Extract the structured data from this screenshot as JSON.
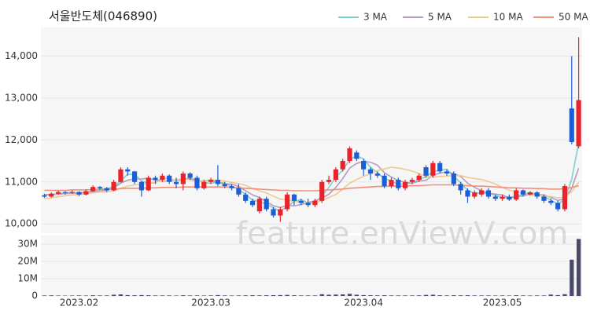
{
  "chart_data": {
    "type": "candlestick",
    "title": "서울반도체(046890)",
    "watermark": "feature.enViewV.com",
    "categories": [
      null,
      null,
      null,
      null,
      null,
      "2023.02",
      null,
      null,
      null,
      null,
      null,
      null,
      null,
      null,
      null,
      null,
      null,
      null,
      null,
      null,
      null,
      null,
      null,
      null,
      "2023.03",
      null,
      null,
      null,
      null,
      null,
      null,
      null,
      null,
      null,
      null,
      null,
      null,
      null,
      null,
      null,
      null,
      null,
      null,
      null,
      null,
      null,
      "2023.04",
      null,
      null,
      null,
      null,
      null,
      null,
      null,
      null,
      null,
      null,
      null,
      null,
      null,
      null,
      null,
      null,
      null,
      null,
      null,
      "2023.05",
      null,
      null,
      null,
      null,
      null,
      null,
      null,
      null,
      null,
      null,
      null
    ],
    "open": [
      10680,
      10650,
      10720,
      10760,
      10740,
      10760,
      10700,
      10780,
      10880,
      10850,
      10800,
      11000,
      11300,
      11250,
      11000,
      10800,
      11100,
      11050,
      11150,
      11000,
      10950,
      11200,
      11100,
      10850,
      11000,
      11050,
      10950,
      10900,
      10850,
      10700,
      10550,
      10300,
      10600,
      10350,
      10200,
      10350,
      10700,
      10550,
      10500,
      10450,
      10550,
      11000,
      11050,
      11300,
      11500,
      11700,
      11500,
      11300,
      11200,
      11150,
      10900,
      11050,
      10850,
      11000,
      11050,
      11350,
      11150,
      11450,
      11250,
      11200,
      10950,
      10800,
      10650,
      10700,
      10800,
      10650,
      10600,
      10650,
      10580,
      10800,
      10700,
      10750,
      10650,
      10550,
      10500,
      10350,
      12750,
      11850
    ],
    "high": [
      10720,
      10750,
      10790,
      10780,
      10800,
      10780,
      10820,
      10920,
      10900,
      10880,
      11050,
      11350,
      11350,
      11260,
      11020,
      11150,
      11150,
      11200,
      11180,
      11100,
      11250,
      11230,
      11150,
      11050,
      11100,
      11400,
      11000,
      10950,
      10950,
      10750,
      10600,
      10650,
      10650,
      10400,
      10400,
      10750,
      10720,
      10600,
      10600,
      10600,
      11050,
      11150,
      11350,
      11550,
      11850,
      11750,
      11550,
      11350,
      11250,
      11200,
      11100,
      11100,
      11050,
      11100,
      11200,
      11400,
      11500,
      11500,
      11300,
      11250,
      11000,
      10850,
      10800,
      10850,
      10850,
      10700,
      10700,
      10700,
      10850,
      10820,
      10780,
      10780,
      10700,
      10600,
      10550,
      10950,
      14000,
      14450
    ],
    "low": [
      10620,
      10630,
      10700,
      10700,
      10720,
      10660,
      10680,
      10760,
      10820,
      10760,
      10780,
      10980,
      11150,
      10950,
      10650,
      10780,
      10950,
      11000,
      10950,
      10850,
      10800,
      11050,
      10800,
      10820,
      10950,
      10900,
      10850,
      10800,
      10650,
      10500,
      10400,
      10250,
      10300,
      10150,
      10050,
      10300,
      10450,
      10450,
      10400,
      10400,
      10500,
      10950,
      11000,
      11250,
      11450,
      11500,
      11150,
      11050,
      11100,
      10850,
      10850,
      10800,
      10800,
      10950,
      11000,
      11100,
      11100,
      11200,
      11150,
      10900,
      10700,
      10500,
      10600,
      10650,
      10600,
      10550,
      10550,
      10550,
      10550,
      10650,
      10680,
      10600,
      10500,
      10450,
      10300,
      10300,
      11900,
      11800
    ],
    "close": [
      10650,
      10720,
      10760,
      10740,
      10760,
      10700,
      10780,
      10880,
      10850,
      10800,
      11000,
      11300,
      11250,
      11000,
      10800,
      11100,
      11050,
      11150,
      11000,
      10950,
      11200,
      11100,
      10850,
      11000,
      11050,
      10950,
      10900,
      10850,
      10700,
      10550,
      10450,
      10600,
      10350,
      10200,
      10350,
      10700,
      10550,
      10500,
      10450,
      10550,
      11000,
      11050,
      11300,
      11500,
      11800,
      11550,
      11300,
      11200,
      11150,
      10900,
      11050,
      10850,
      11000,
      11050,
      11150,
      11150,
      11450,
      11250,
      11200,
      10950,
      10800,
      10650,
      10750,
      10800,
      10650,
      10600,
      10650,
      10580,
      10800,
      10700,
      10750,
      10650,
      10550,
      10500,
      10350,
      10900,
      11950,
      12950
    ],
    "up_color": "#e8232a",
    "down_color": "#1a5fd6",
    "ylim": [
      9780,
      14680
    ],
    "yticks": [
      {
        "value": 10000,
        "label": "10,000"
      },
      {
        "value": 11000,
        "label": "11,000"
      },
      {
        "value": 12000,
        "label": "12,000"
      },
      {
        "value": 13000,
        "label": "13,000"
      },
      {
        "value": 14000,
        "label": "14,000"
      }
    ],
    "grid": true,
    "legend": "top-right",
    "series": [
      {
        "name": "3 MA",
        "color": "#7ecfcf",
        "values": [
          10680,
          10700,
          10710,
          10740,
          10750,
          10730,
          10750,
          10790,
          10840,
          10840,
          10880,
          11030,
          11180,
          11180,
          11020,
          10970,
          10980,
          11100,
          11070,
          11030,
          11050,
          11080,
          11050,
          10980,
          10970,
          11000,
          10970,
          10900,
          10820,
          10700,
          10570,
          10530,
          10470,
          10380,
          10300,
          10420,
          10530,
          10580,
          10500,
          10500,
          10670,
          10870,
          11120,
          11280,
          11530,
          11620,
          11550,
          11350,
          11220,
          11080,
          11030,
          10930,
          10970,
          10970,
          11070,
          11120,
          11250,
          11280,
          11300,
          11130,
          10980,
          10800,
          10730,
          10730,
          10730,
          10680,
          10630,
          10610,
          10680,
          10690,
          10750,
          10700,
          10650,
          10570,
          10470,
          10580,
          11070,
          11930
        ]
      },
      {
        "name": "5 MA",
        "color": "#b49bc8",
        "values": [
          10700,
          10700,
          10710,
          10720,
          10730,
          10740,
          10750,
          10770,
          10790,
          10800,
          10860,
          10970,
          11040,
          11070,
          11070,
          11090,
          11040,
          11020,
          11020,
          11050,
          11070,
          11090,
          11030,
          11020,
          11040,
          10990,
          10950,
          10950,
          10890,
          10790,
          10690,
          10630,
          10530,
          10430,
          10390,
          10440,
          10430,
          10460,
          10510,
          10550,
          10610,
          10710,
          10870,
          11080,
          11330,
          11440,
          11490,
          11470,
          11400,
          11220,
          11120,
          11030,
          10990,
          10970,
          11020,
          11040,
          11160,
          11210,
          11240,
          11200,
          11130,
          10970,
          10870,
          10790,
          10730,
          10710,
          10690,
          10620,
          10640,
          10670,
          10700,
          10700,
          10690,
          10630,
          10560,
          10590,
          10850,
          11330
        ]
      },
      {
        "name": "10 MA",
        "color": "#f0c890",
        "values": [
          10600,
          10620,
          10650,
          10670,
          10690,
          10700,
          10720,
          10740,
          10760,
          10760,
          10790,
          10850,
          10900,
          10930,
          10940,
          10970,
          11000,
          11030,
          11040,
          11050,
          11070,
          11050,
          11010,
          11030,
          11050,
          11040,
          11020,
          10990,
          10960,
          10920,
          10840,
          10790,
          10740,
          10660,
          10590,
          10570,
          10540,
          10510,
          10490,
          10490,
          10560,
          10630,
          10700,
          10830,
          10970,
          11060,
          11130,
          11200,
          11270,
          11310,
          11350,
          11330,
          11300,
          11260,
          11200,
          11130,
          11120,
          11130,
          11140,
          11150,
          11150,
          11110,
          11080,
          11060,
          11010,
          10950,
          10870,
          10800,
          10770,
          10720,
          10690,
          10690,
          10670,
          10650,
          10620,
          10640,
          10770,
          10990
        ]
      },
      {
        "name": "50 MA",
        "color": "#f0907a",
        "values": [
          10800,
          10800,
          10800,
          10800,
          10810,
          10810,
          10810,
          10820,
          10820,
          10820,
          10830,
          10840,
          10850,
          10850,
          10850,
          10860,
          10860,
          10870,
          10870,
          10870,
          10880,
          10880,
          10880,
          10880,
          10880,
          10880,
          10880,
          10870,
          10860,
          10850,
          10840,
          10830,
          10820,
          10810,
          10800,
          10800,
          10790,
          10790,
          10790,
          10790,
          10800,
          10810,
          10820,
          10830,
          10850,
          10860,
          10870,
          10880,
          10890,
          10890,
          10900,
          10900,
          10900,
          10910,
          10910,
          10920,
          10930,
          10930,
          10930,
          10930,
          10920,
          10910,
          10900,
          10900,
          10890,
          10880,
          10870,
          10860,
          10860,
          10850,
          10850,
          10840,
          10840,
          10830,
          10830,
          10840,
          10870,
          10910
        ]
      }
    ],
    "volume": {
      "color": "#4a4a6a",
      "ylim": [
        0,
        35000000
      ],
      "yticks": [
        0,
        {
          "value": 10000000,
          "label": "10M"
        },
        {
          "value": 20000000,
          "label": "20M"
        },
        {
          "value": 30000000,
          "label": "30M"
        }
      ],
      "values": [
        300000,
        350000,
        250000,
        200000,
        250000,
        300000,
        250000,
        400000,
        300000,
        300000,
        700000,
        900000,
        500000,
        400000,
        500000,
        400000,
        300000,
        300000,
        300000,
        250000,
        400000,
        300000,
        300000,
        250000,
        300000,
        500000,
        300000,
        250000,
        300000,
        350000,
        400000,
        350000,
        400000,
        450000,
        500000,
        600000,
        400000,
        300000,
        300000,
        300000,
        1000000,
        700000,
        800000,
        900000,
        1200000,
        700000,
        500000,
        400000,
        350000,
        400000,
        300000,
        300000,
        300000,
        300000,
        350000,
        600000,
        700000,
        400000,
        300000,
        400000,
        350000,
        400000,
        300000,
        300000,
        300000,
        250000,
        300000,
        250000,
        400000,
        300000,
        250000,
        300000,
        300000,
        800000,
        500000,
        1000000,
        21000000,
        33000000
      ]
    }
  }
}
